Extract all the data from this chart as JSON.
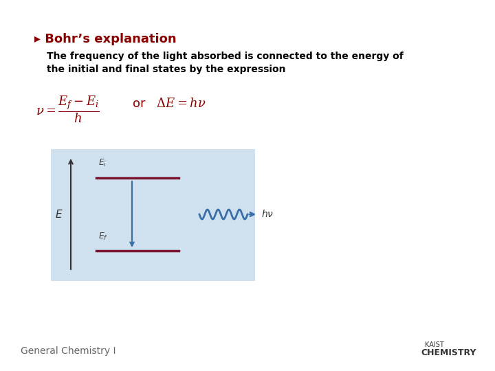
{
  "background_color": "#ffffff",
  "title_text": "▸ Bohr’s explanation",
  "title_color": "#8b0000",
  "title_fontsize": 13,
  "body_text": "The frequency of the light absorbed is connected to the energy of\nthe initial and final states by the expression",
  "body_fontsize": 10,
  "body_color": "#000000",
  "formula_color": "#8b0000",
  "formula_fontsize": 13,
  "box_bg": "#cfe0ef",
  "level_color": "#7b1530",
  "arrow_color": "#3a6ea8",
  "wavy_color": "#3a6ea8",
  "footer_text": "General Chemistry I",
  "footer_color": "#666666",
  "footer_fontsize": 10,
  "kaist_color": "#333333"
}
